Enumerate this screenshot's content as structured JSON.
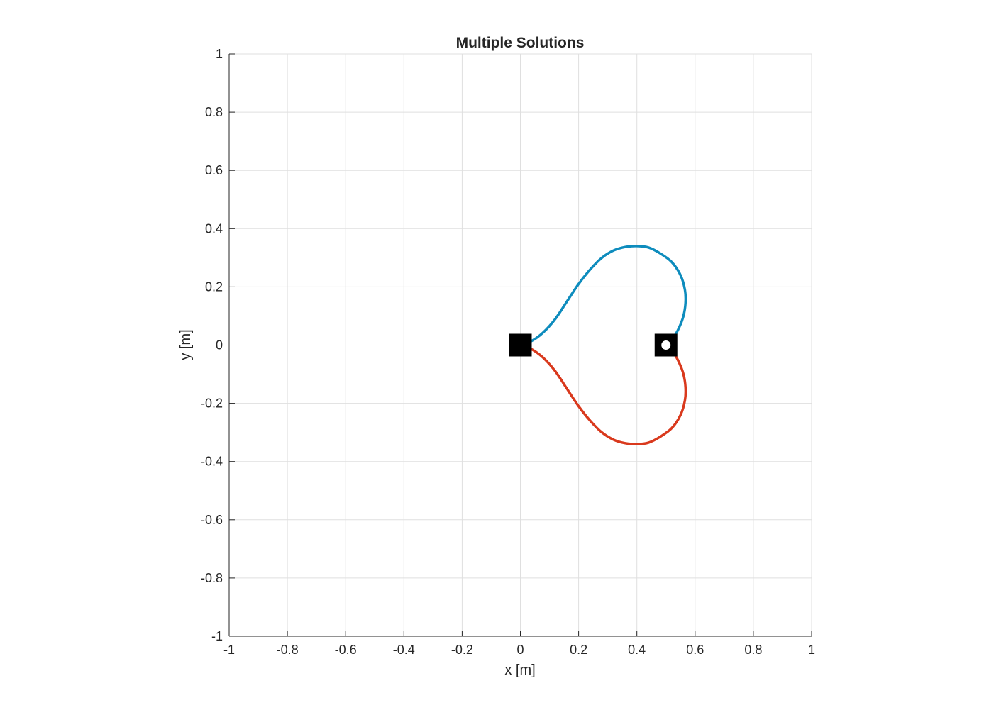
{
  "chart_data": {
    "type": "line",
    "title": "Multiple Solutions",
    "xlabel": "x [m]",
    "ylabel": "y [m]",
    "xlim": [
      -1,
      1
    ],
    "ylim": [
      -1,
      1
    ],
    "xticks": [
      -1,
      -0.8,
      -0.6,
      -0.4,
      -0.2,
      0,
      0.2,
      0.4,
      0.6,
      0.8,
      1
    ],
    "yticks": [
      -1,
      -0.8,
      -0.6,
      -0.4,
      -0.2,
      0,
      0.2,
      0.4,
      0.6,
      0.8,
      1
    ],
    "xtick_labels": [
      "-1",
      "-0.8",
      "-0.6",
      "-0.4",
      "-0.2",
      "0",
      "0.2",
      "0.4",
      "0.6",
      "0.8",
      "1"
    ],
    "ytick_labels": [
      "-1",
      "-0.8",
      "-0.6",
      "-0.4",
      "-0.2",
      "0",
      "0.2",
      "0.4",
      "0.6",
      "0.8",
      "1"
    ],
    "grid": true,
    "series": [
      {
        "color": "#0e8cbd",
        "points": [
          [
            0,
            0
          ],
          [
            0.04,
            0.015
          ],
          [
            0.08,
            0.045
          ],
          [
            0.12,
            0.09
          ],
          [
            0.16,
            0.15
          ],
          [
            0.2,
            0.21
          ],
          [
            0.24,
            0.26
          ],
          [
            0.28,
            0.3
          ],
          [
            0.32,
            0.325
          ],
          [
            0.36,
            0.337
          ],
          [
            0.4,
            0.34
          ],
          [
            0.44,
            0.335
          ],
          [
            0.48,
            0.315
          ],
          [
            0.52,
            0.285
          ],
          [
            0.55,
            0.24
          ],
          [
            0.565,
            0.19
          ],
          [
            0.567,
            0.145
          ],
          [
            0.56,
            0.1
          ],
          [
            0.545,
            0.06
          ],
          [
            0.525,
            0.025
          ],
          [
            0.5,
            0
          ]
        ]
      },
      {
        "color": "#d9391d",
        "points": [
          [
            0,
            0
          ],
          [
            0.04,
            -0.015
          ],
          [
            0.08,
            -0.045
          ],
          [
            0.12,
            -0.09
          ],
          [
            0.16,
            -0.15
          ],
          [
            0.2,
            -0.21
          ],
          [
            0.24,
            -0.26
          ],
          [
            0.28,
            -0.3
          ],
          [
            0.32,
            -0.325
          ],
          [
            0.36,
            -0.337
          ],
          [
            0.4,
            -0.34
          ],
          [
            0.44,
            -0.335
          ],
          [
            0.48,
            -0.315
          ],
          [
            0.52,
            -0.285
          ],
          [
            0.55,
            -0.24
          ],
          [
            0.565,
            -0.19
          ],
          [
            0.567,
            -0.145
          ],
          [
            0.56,
            -0.1
          ],
          [
            0.545,
            -0.06
          ],
          [
            0.525,
            -0.025
          ],
          [
            0.5,
            0
          ]
        ]
      }
    ],
    "markers": [
      {
        "name": "start",
        "x": 0,
        "y": 0,
        "shape": "filled-square",
        "color": "#000000"
      },
      {
        "name": "goal",
        "x": 0.5,
        "y": 0,
        "shape": "square-with-dot",
        "color": "#000000",
        "dot_color": "#ffffff"
      }
    ]
  }
}
